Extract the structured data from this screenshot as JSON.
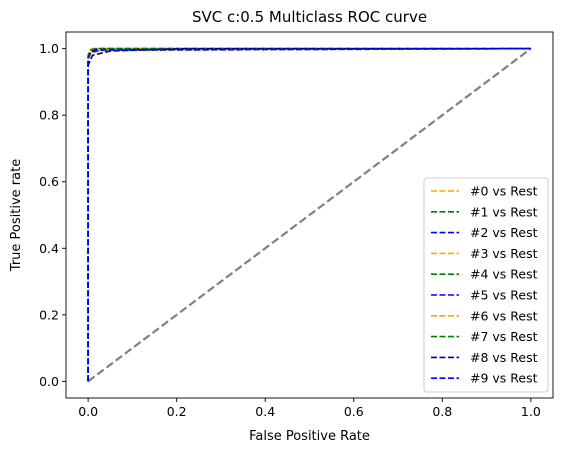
{
  "chart_data": {
    "type": "line",
    "title": "SVC c:0.5 Multiclass ROC curve",
    "xlabel": "False Positive Rate",
    "ylabel": "True Positive rate",
    "xlim": [
      -0.05,
      1.05
    ],
    "ylim": [
      -0.05,
      1.05
    ],
    "xticks": [
      0.0,
      0.2,
      0.4,
      0.6,
      0.8,
      1.0
    ],
    "yticks": [
      0.0,
      0.2,
      0.4,
      0.6,
      0.8,
      1.0
    ],
    "xtick_labels": [
      "0.0",
      "0.2",
      "0.4",
      "0.6",
      "0.8",
      "1.0"
    ],
    "ytick_labels": [
      "0.0",
      "0.2",
      "0.4",
      "0.6",
      "0.8",
      "1.0"
    ],
    "grid": false,
    "legend_position": "lower-right",
    "reference_line": {
      "x": [
        0,
        1
      ],
      "y": [
        0,
        1
      ],
      "color": "#808080",
      "style": "dashed"
    },
    "series": [
      {
        "name": "#0 vs Rest",
        "color": "#ffa500",
        "style": "dashed",
        "x": [
          0,
          0,
          0.003,
          0.01,
          1
        ],
        "y": [
          0,
          0.97,
          0.995,
          1.0,
          1.0
        ]
      },
      {
        "name": "#1 vs Rest",
        "color": "#008000",
        "style": "dashed",
        "x": [
          0,
          0,
          0.004,
          0.015,
          1
        ],
        "y": [
          0,
          0.975,
          0.99,
          1.0,
          1.0
        ]
      },
      {
        "name": "#2 vs Rest",
        "color": "#0000ff",
        "style": "dashed",
        "x": [
          0,
          0,
          0.005,
          0.02,
          1
        ],
        "y": [
          0,
          0.97,
          0.99,
          0.995,
          1.0
        ]
      },
      {
        "name": "#3 vs Rest",
        "color": "#ffa500",
        "style": "dashed",
        "x": [
          0,
          0,
          0.006,
          0.03,
          1
        ],
        "y": [
          0,
          0.96,
          0.985,
          0.995,
          1.0
        ]
      },
      {
        "name": "#4 vs Rest",
        "color": "#008000",
        "style": "dashed",
        "x": [
          0,
          0,
          0.004,
          0.02,
          1
        ],
        "y": [
          0,
          0.975,
          0.99,
          1.0,
          1.0
        ]
      },
      {
        "name": "#5 vs Rest",
        "color": "#0000ff",
        "style": "dashed",
        "x": [
          0,
          0,
          0.005,
          0.02,
          1
        ],
        "y": [
          0,
          0.975,
          0.99,
          1.0,
          1.0
        ]
      },
      {
        "name": "#6 vs Rest",
        "color": "#ffa500",
        "style": "dashed",
        "x": [
          0,
          0,
          0.003,
          0.01,
          1
        ],
        "y": [
          0,
          0.98,
          0.995,
          1.0,
          1.0
        ]
      },
      {
        "name": "#7 vs Rest",
        "color": "#008000",
        "style": "dashed",
        "x": [
          0,
          0,
          0.005,
          0.015,
          1
        ],
        "y": [
          0,
          0.98,
          0.995,
          1.0,
          1.0
        ]
      },
      {
        "name": "#8 vs Rest",
        "color": "#00008b",
        "style": "dashed",
        "x": [
          0,
          0,
          0.01,
          0.05,
          0.22,
          1
        ],
        "y": [
          0,
          0.95,
          0.98,
          0.993,
          1.0,
          1.0
        ]
      },
      {
        "name": "#9 vs Rest",
        "color": "#0000ff",
        "style": "dashed",
        "x": [
          0,
          0,
          0.006,
          0.03,
          1
        ],
        "y": [
          0,
          0.97,
          0.99,
          0.996,
          1.0
        ]
      }
    ]
  }
}
